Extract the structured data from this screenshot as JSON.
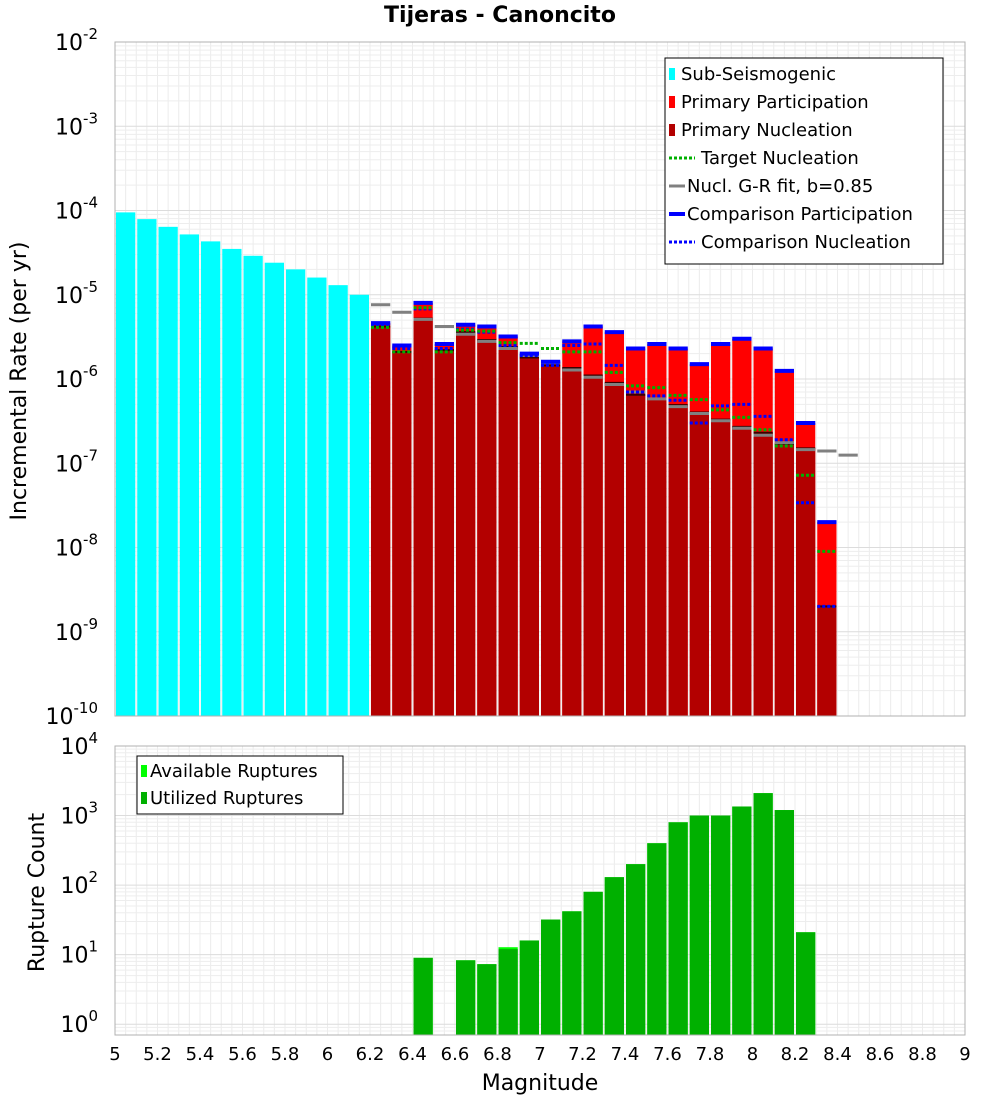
{
  "chart_data": [
    {
      "type": "bar",
      "title": "Tijeras - Canoncito",
      "ylabel": "Incremental Rate (per yr)",
      "xlabel": "",
      "xlim": [
        5,
        9
      ],
      "ylim": [
        1e-10,
        0.01
      ],
      "yscale": "log",
      "y_ticks": [
        {
          "base": "10",
          "exp": "-10",
          "value": 1e-10
        },
        {
          "base": "10",
          "exp": "-9",
          "value": 1e-09
        },
        {
          "base": "10",
          "exp": "-8",
          "value": 1e-08
        },
        {
          "base": "10",
          "exp": "-7",
          "value": 1e-07
        },
        {
          "base": "10",
          "exp": "-6",
          "value": 1e-06
        },
        {
          "base": "10",
          "exp": "-5",
          "value": 1e-05
        },
        {
          "base": "10",
          "exp": "-4",
          "value": 0.0001
        },
        {
          "base": "10",
          "exp": "-3",
          "value": 0.001
        },
        {
          "base": "10",
          "exp": "-2",
          "value": 0.01
        }
      ],
      "bin_width": 0.1,
      "legend_position": "top-right",
      "series": [
        {
          "name": "Sub-Seismogenic",
          "style": "bar",
          "color": "#00ffff",
          "x": [
            5.05,
            5.15,
            5.25,
            5.35,
            5.45,
            5.55,
            5.65,
            5.75,
            5.85,
            5.95,
            6.05,
            6.15
          ],
          "values": [
            9.5e-05,
            7.9e-05,
            6.4e-05,
            5.2e-05,
            4.3e-05,
            3.5e-05,
            2.9e-05,
            2.4e-05,
            2e-05,
            1.6e-05,
            1.3e-05,
            1e-05
          ]
        },
        {
          "name": "Primary Participation",
          "style": "bar",
          "color": "#ff0000",
          "x": [
            6.25,
            6.35,
            6.45,
            6.55,
            6.65,
            6.75,
            6.85,
            6.95,
            7.05,
            7.15,
            7.25,
            7.35,
            7.45,
            7.55,
            7.65,
            7.75,
            7.85,
            7.95,
            8.05,
            8.15,
            8.25,
            8.35
          ],
          "values": [
            4.6e-06,
            2.5e-06,
            8e-06,
            2.6e-06,
            4.4e-06,
            4.2e-06,
            3.2e-06,
            2e-06,
            1.6e-06,
            2.8e-06,
            4.2e-06,
            3.6e-06,
            2.3e-06,
            2.6e-06,
            2.3e-06,
            1.5e-06,
            2.6e-06,
            3e-06,
            2.3e-06,
            1.25e-06,
            3e-07,
            2e-08
          ]
        },
        {
          "name": "Primary Nucleation",
          "style": "bar",
          "color": "#b30000",
          "x": [
            6.25,
            6.35,
            6.45,
            6.55,
            6.65,
            6.75,
            6.85,
            6.95,
            7.05,
            7.15,
            7.25,
            7.35,
            7.45,
            7.55,
            7.65,
            7.75,
            7.85,
            7.95,
            8.05,
            8.15,
            8.25,
            8.35
          ],
          "values": [
            4.2e-06,
            2.1e-06,
            5.2e-06,
            2.2e-06,
            3.6e-06,
            2.9e-06,
            2.4e-06,
            1.8e-06,
            1.45e-06,
            1.35e-06,
            1.1e-06,
            9e-07,
            6.5e-07,
            5.8e-07,
            4.9e-07,
            4e-07,
            3.3e-07,
            2.7e-07,
            2.3e-07,
            1.7e-07,
            1.5e-07,
            2e-09
          ]
        },
        {
          "name": "Target Nucleation",
          "style": "dotted-step",
          "color": "#00b000",
          "x": [
            6.25,
            6.35,
            6.45,
            6.55,
            6.65,
            6.75,
            6.85,
            6.95,
            7.05,
            7.15,
            7.25,
            7.35,
            7.45,
            7.55,
            7.65,
            7.75,
            7.85,
            7.95,
            8.05,
            8.15,
            8.25,
            8.35
          ],
          "values": [
            4.1e-06,
            2.1e-06,
            7e-06,
            2.1e-06,
            3.8e-06,
            3.7e-06,
            2.7e-06,
            2.65e-06,
            2.3e-06,
            2.1e-06,
            2.1e-06,
            1.2e-06,
            8.3e-07,
            7.9e-07,
            6.4e-07,
            5.7e-07,
            4.3e-07,
            3.5e-07,
            2.5e-07,
            1.6e-07,
            7.2e-08,
            9e-09
          ]
        },
        {
          "name": "Nucl. G-R fit, b=0.85",
          "style": "solid-step",
          "color": "#808080",
          "x": [
            6.25,
            6.35,
            6.45,
            6.55,
            6.65,
            6.75,
            6.85,
            6.95,
            7.05,
            7.15,
            7.25,
            7.35,
            7.45,
            7.55,
            7.65,
            7.75,
            7.85,
            7.95,
            8.05,
            8.15,
            8.25,
            8.35,
            8.45
          ],
          "values": [
            7.6e-06,
            6.2e-06,
            5.1e-06,
            4.2e-06,
            3.4e-06,
            2.8e-06,
            2.3e-06,
            1.9e-06,
            1.56e-06,
            1.28e-06,
            1.05e-06,
            8.6e-07,
            7e-07,
            5.8e-07,
            4.7e-07,
            3.9e-07,
            3.2e-07,
            2.6e-07,
            2.15e-07,
            1.76e-07,
            1.45e-07,
            1.4e-07,
            1.25e-07
          ]
        },
        {
          "name": "Comparison Participation",
          "style": "solid-step",
          "color": "#0000ff",
          "x": [
            6.25,
            6.35,
            6.45,
            6.55,
            6.65,
            6.75,
            6.85,
            6.95,
            7.05,
            7.15,
            7.25,
            7.35,
            7.45,
            7.55,
            7.65,
            7.75,
            7.85,
            7.95,
            8.05,
            8.15,
            8.25,
            8.35
          ],
          "values": [
            4.6e-06,
            2.5e-06,
            8e-06,
            2.6e-06,
            4.4e-06,
            4.2e-06,
            3.2e-06,
            2e-06,
            1.6e-06,
            2.8e-06,
            4.2e-06,
            3.6e-06,
            2.3e-06,
            2.6e-06,
            2.3e-06,
            1.5e-06,
            2.6e-06,
            3e-06,
            2.3e-06,
            1.25e-06,
            3e-07,
            2e-08
          ]
        },
        {
          "name": "Comparison Nucleation",
          "style": "dotted-step",
          "color": "#0000ff",
          "x": [
            6.25,
            6.35,
            6.45,
            6.55,
            6.65,
            6.75,
            6.85,
            6.95,
            7.05,
            7.15,
            7.25,
            7.35,
            7.45,
            7.55,
            7.65,
            7.75,
            7.85,
            7.95,
            8.05,
            8.15,
            8.25,
            8.35
          ],
          "values": [
            4.2e-06,
            2.3e-06,
            6.8e-06,
            2.3e-06,
            3.9e-06,
            3.6e-06,
            2.5e-06,
            1.9e-06,
            1.45e-06,
            2.5e-06,
            2.6e-06,
            1.45e-06,
            7e-07,
            6.3e-07,
            5.6e-07,
            3e-07,
            4.8e-07,
            5e-07,
            3.6e-07,
            1.9e-07,
            3.4e-08,
            2e-09
          ]
        }
      ]
    },
    {
      "type": "bar",
      "title": "",
      "ylabel": "Rupture Count",
      "xlabel": "Magnitude",
      "xlim": [
        5,
        9
      ],
      "ylim": [
        0.7,
        10000
      ],
      "yscale": "log",
      "y_ticks": [
        {
          "base": "10",
          "exp": "0",
          "value": 1
        },
        {
          "base": "10",
          "exp": "1",
          "value": 10
        },
        {
          "base": "10",
          "exp": "2",
          "value": 100
        },
        {
          "base": "10",
          "exp": "3",
          "value": 1000
        },
        {
          "base": "10",
          "exp": "4",
          "value": 10000
        }
      ],
      "x_ticks": [
        "5",
        "5.2",
        "5.4",
        "5.6",
        "5.8",
        "6",
        "6.2",
        "6.4",
        "6.6",
        "6.8",
        "7",
        "7.2",
        "7.4",
        "7.6",
        "7.8",
        "8",
        "8.2",
        "8.4",
        "8.6",
        "8.8",
        "9"
      ],
      "bin_width": 0.1,
      "legend_position": "top-left",
      "series": [
        {
          "name": "Available Ruptures",
          "color": "#00ff00",
          "x": [
            6.45,
            6.65,
            6.75,
            6.85,
            6.95,
            7.05,
            7.15,
            7.25,
            7.35,
            7.45,
            7.55,
            7.65,
            7.75,
            7.85,
            7.95,
            8.05,
            8.15,
            8.25
          ],
          "values": [
            9,
            8.3,
            7.3,
            12.8,
            16,
            32,
            42,
            80,
            130,
            200,
            400,
            800,
            1000,
            1000,
            1350,
            2100,
            1200,
            21
          ]
        },
        {
          "name": "Utilized Ruptures",
          "color": "#00b000",
          "x": [
            6.45,
            6.65,
            6.75,
            6.85,
            6.95,
            7.05,
            7.15,
            7.25,
            7.35,
            7.45,
            7.55,
            7.65,
            7.75,
            7.85,
            7.95,
            8.05,
            8.15,
            8.25
          ],
          "values": [
            9,
            8.3,
            7.3,
            12,
            16,
            32,
            42,
            80,
            130,
            200,
            400,
            800,
            1000,
            1000,
            1350,
            2100,
            1200,
            21
          ]
        }
      ]
    }
  ]
}
